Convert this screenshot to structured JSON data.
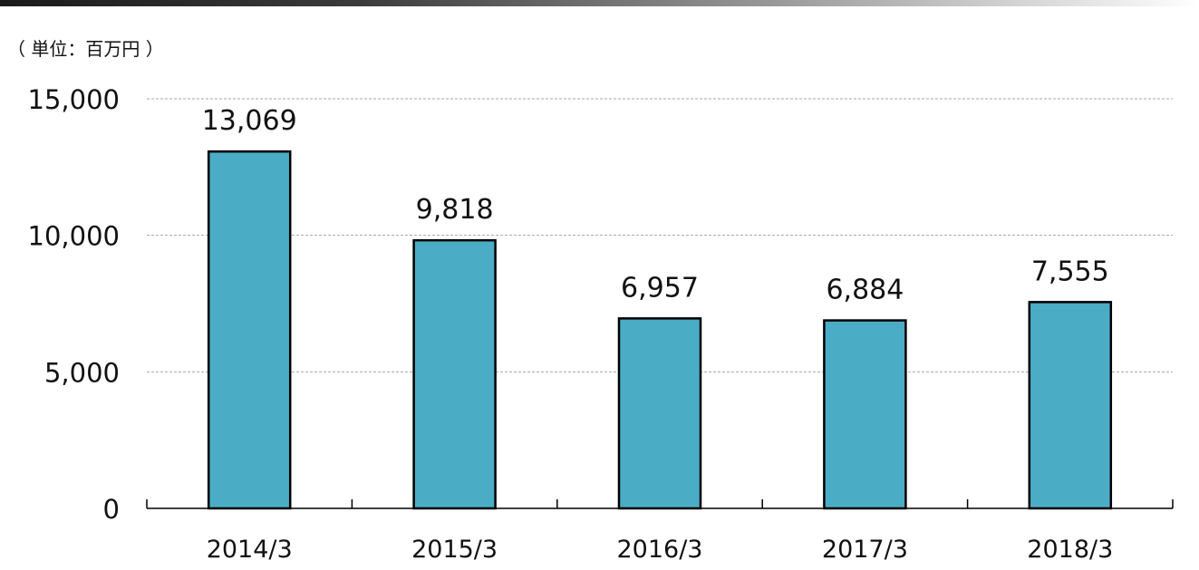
{
  "unit_label": "（ 単位：百万円 ）",
  "colors": {
    "bar_fill": "#4bacc6",
    "bar_stroke": "#000000",
    "gridline": "#a6a6a6",
    "axis": "#000000",
    "text": "#111111"
  },
  "chart_data": {
    "type": "bar",
    "title": "",
    "xlabel": "",
    "ylabel": "",
    "categories": [
      "2014/3",
      "2015/3",
      "2016/3",
      "2017/3",
      "2018/3"
    ],
    "values": [
      13069,
      9818,
      6957,
      6884,
      7555
    ],
    "data_labels": [
      "13,069",
      "9,818",
      "6,957",
      "6,884",
      "7,555"
    ],
    "ylim": [
      0,
      15000
    ],
    "yticks": [
      0,
      5000,
      10000,
      15000
    ],
    "ytick_labels": [
      "0",
      "5,000",
      "10,000",
      "15,000"
    ],
    "grid": true,
    "grid_style": "dashed",
    "legend": "none"
  }
}
